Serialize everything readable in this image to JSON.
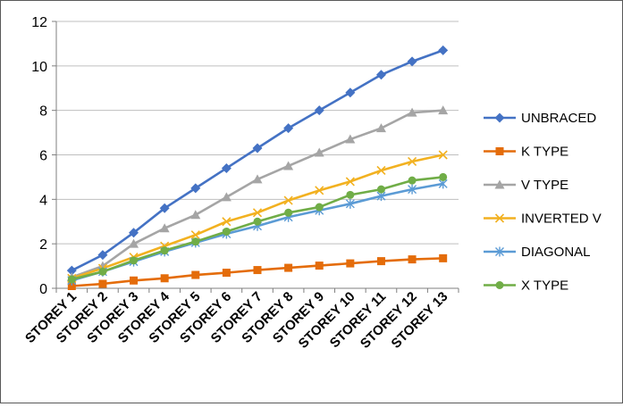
{
  "chart_data": {
    "type": "line",
    "title": "",
    "xlabel": "",
    "ylabel": "",
    "ylim": [
      0,
      12
    ],
    "yticks": [
      0,
      2,
      4,
      6,
      8,
      10,
      12
    ],
    "ytick_labels": [
      "0",
      "2",
      "4",
      "6",
      "8",
      "10",
      "12"
    ],
    "grid": true,
    "legend_position": "right",
    "categories": [
      "STOREY 1",
      "STOREY 2",
      "STOREY 3",
      "STOREY 4",
      "STOREY 5",
      "STOREY 6",
      "STOREY 7",
      "STOREY 8",
      "STOREY 9",
      "STOREY 10",
      "STOREY 11",
      "STOREY 12",
      "STOREY 13"
    ],
    "series": [
      {
        "name": "UNBRACED",
        "color": "#4472C4",
        "marker": "diamond",
        "values": [
          0.8,
          1.5,
          2.5,
          3.6,
          4.5,
          5.4,
          6.3,
          7.2,
          8.0,
          8.8,
          9.6,
          10.2,
          10.7
        ]
      },
      {
        "name": "K TYPE",
        "color": "#E46C0A",
        "marker": "square",
        "values": [
          0.1,
          0.2,
          0.35,
          0.45,
          0.6,
          0.7,
          0.82,
          0.92,
          1.02,
          1.12,
          1.22,
          1.3,
          1.35
        ]
      },
      {
        "name": "V TYPE",
        "color": "#A5A5A5",
        "marker": "triangle",
        "values": [
          0.5,
          1.0,
          2.0,
          2.7,
          3.3,
          4.1,
          4.9,
          5.5,
          6.1,
          6.7,
          7.2,
          7.9,
          8.0
        ]
      },
      {
        "name": "INVERTED V",
        "color": "#F2B120",
        "marker": "x",
        "values": [
          0.45,
          0.9,
          1.4,
          1.9,
          2.4,
          3.0,
          3.4,
          3.95,
          4.4,
          4.8,
          5.3,
          5.7,
          6.0
        ]
      },
      {
        "name": "DIAGONAL",
        "color": "#5B9BD5",
        "marker": "star",
        "values": [
          0.35,
          0.75,
          1.2,
          1.65,
          2.05,
          2.45,
          2.8,
          3.2,
          3.5,
          3.8,
          4.15,
          4.45,
          4.7
        ]
      },
      {
        "name": "X TYPE",
        "color": "#70AD47",
        "marker": "circle",
        "values": [
          0.4,
          0.75,
          1.25,
          1.7,
          2.1,
          2.55,
          3.0,
          3.4,
          3.65,
          4.2,
          4.45,
          4.85,
          5.0
        ]
      }
    ]
  }
}
